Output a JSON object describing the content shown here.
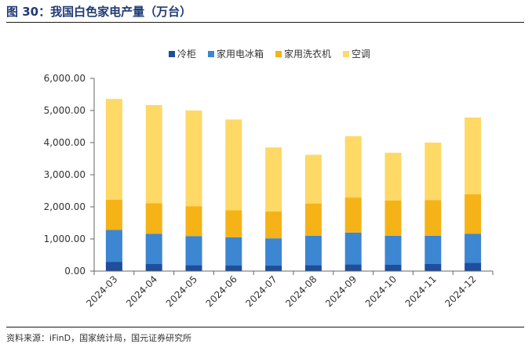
{
  "figure": {
    "title": "图 30：我国白色家电产量（万台）",
    "source": "资料来源：iFinD，国家统计局，国元证券研究所"
  },
  "chart_data": {
    "type": "bar",
    "stacked": true,
    "categories": [
      "2024-03",
      "2024-04",
      "2024-05",
      "2024-06",
      "2024-07",
      "2024-08",
      "2024-09",
      "2024-10",
      "2024-11",
      "2024-12"
    ],
    "series": [
      {
        "name": "冷柜",
        "color": "#1e4e9c",
        "values": [
          290,
          220,
          185,
          180,
          170,
          185,
          210,
          195,
          220,
          255
        ]
      },
      {
        "name": "家用电冰箱",
        "color": "#3d86d1",
        "values": [
          990,
          940,
          905,
          875,
          850,
          915,
          990,
          905,
          880,
          905
        ]
      },
      {
        "name": "家用洗衣机",
        "color": "#f5b317",
        "values": [
          940,
          950,
          930,
          835,
          835,
          1005,
          1090,
          1095,
          1110,
          1230
        ]
      },
      {
        "name": "空调",
        "color": "#fed966",
        "values": [
          3140,
          3060,
          2980,
          2830,
          1995,
          1515,
          1910,
          1490,
          1790,
          2390
        ]
      }
    ],
    "yticks": [
      "0.00",
      "1,000.00",
      "2,000.00",
      "3,000.00",
      "4,000.00",
      "5,000.00",
      "6,000.00"
    ],
    "ylim": [
      0,
      6000
    ],
    "legend": "top",
    "grid": false
  }
}
